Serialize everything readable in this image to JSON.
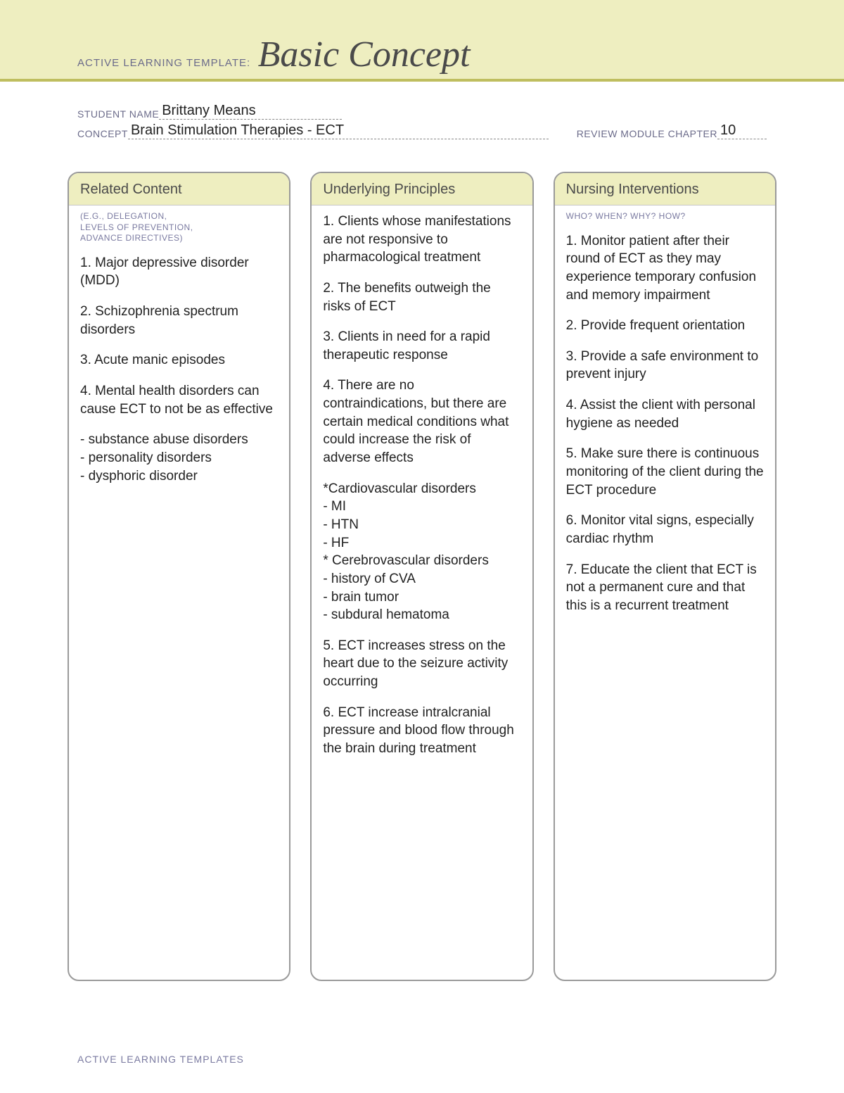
{
  "colors": {
    "header_bg": "#eeeec0",
    "accent_border": "#bfbe5f",
    "label_text": "#6b6b8a",
    "title_text": "#4a4a4a",
    "card_border": "#9a9a9a",
    "sub_text": "#7a7aa0",
    "body_text": "#222222",
    "page_bg": "#ffffff"
  },
  "header": {
    "template_label": "ACTIVE LEARNING TEMPLATE:",
    "title": "Basic Concept"
  },
  "meta": {
    "student_label": "STUDENT NAME",
    "student_value": "Brittany Means",
    "concept_label": "CONCEPT",
    "concept_value": "Brain Stimulation Therapies - ECT",
    "chapter_label": "REVIEW MODULE CHAPTER",
    "chapter_value": "10"
  },
  "columns": [
    {
      "heading": "Related Content",
      "sub": "(E.G., DELEGATION,\nLEVELS OF PREVENTION,\nADVANCE DIRECTIVES)",
      "body": [
        "1. Major depressive disorder (MDD)",
        "2. Schizophrenia spectrum disorders",
        "3. Acute manic episodes",
        "4. Mental health disorders can cause ECT to not be as effective",
        "- substance abuse disorders\n- personality disorders\n- dysphoric disorder"
      ]
    },
    {
      "heading": "Underlying Principles",
      "sub": "",
      "body": [
        "1. Clients whose manifestations are not responsive to pharmacological treatment",
        "2. The benefits outweigh the risks of ECT",
        "3. Clients in need for a rapid therapeutic response",
        "4. There are no contraindications, but there are certain medical conditions what could increase the risk of adverse effects",
        "*Cardiovascular disorders\n- MI\n- HTN\n- HF\n* Cerebrovascular disorders\n- history of CVA\n- brain tumor\n- subdural hematoma",
        "5. ECT increases stress on the heart due to the seizure activity occurring",
        "6. ECT increase intralcranial pressure and blood flow through the brain during treatment"
      ]
    },
    {
      "heading": "Nursing Interventions",
      "sub": "WHO? WHEN? WHY? HOW?",
      "body": [
        "1. Monitor patient after their round of ECT as they may experience temporary confusion and memory impairment",
        "2. Provide frequent orientation",
        "3. Provide a safe environment to prevent injury",
        "4. Assist the client with personal hygiene as needed",
        "5. Make sure there is continuous monitoring of the client during the ECT procedure",
        "6. Monitor vital signs, especially cardiac rhythm",
        "7. Educate the client that ECT is not a permanent cure and that this is a recurrent treatment"
      ]
    }
  ],
  "footer": "ACTIVE LEARNING TEMPLATES"
}
